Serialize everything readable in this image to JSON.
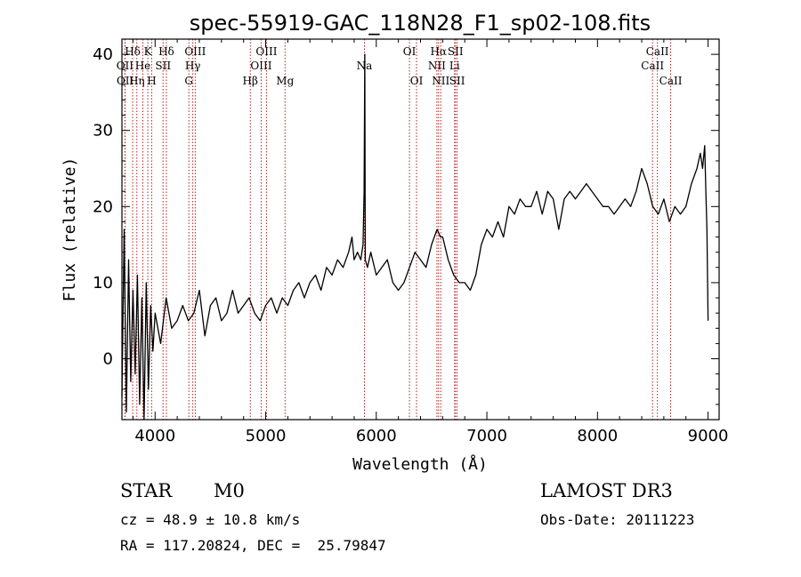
{
  "chart_data": {
    "type": "line",
    "title": "spec-55919-GAC_118N28_F1_sp02-108.fits",
    "xlabel": "Wavelength (Å)",
    "ylabel": "Flux (relative)",
    "xlim": [
      3700,
      9100
    ],
    "ylim": [
      -8,
      42
    ],
    "xticks": [
      4000,
      5000,
      6000,
      7000,
      8000,
      9000
    ],
    "yticks": [
      0,
      10,
      20,
      30,
      40
    ],
    "line_color": "#000000",
    "marker_color": "#b22222",
    "spectrum": {
      "x": [
        3700,
        3720,
        3740,
        3760,
        3780,
        3800,
        3820,
        3840,
        3860,
        3880,
        3900,
        3920,
        3940,
        3960,
        3980,
        4000,
        4050,
        4100,
        4150,
        4200,
        4250,
        4300,
        4350,
        4400,
        4450,
        4500,
        4550,
        4600,
        4650,
        4700,
        4750,
        4800,
        4850,
        4900,
        4950,
        5000,
        5050,
        5100,
        5150,
        5200,
        5250,
        5300,
        5350,
        5400,
        5450,
        5500,
        5550,
        5600,
        5650,
        5700,
        5750,
        5780,
        5800,
        5830,
        5860,
        5880,
        5890,
        5896,
        5900,
        5920,
        5950,
        6000,
        6050,
        6100,
        6150,
        6200,
        6250,
        6300,
        6350,
        6400,
        6450,
        6500,
        6550,
        6580,
        6600,
        6650,
        6700,
        6750,
        6800,
        6850,
        6900,
        6950,
        7000,
        7050,
        7100,
        7150,
        7200,
        7250,
        7300,
        7350,
        7400,
        7450,
        7500,
        7550,
        7600,
        7650,
        7700,
        7750,
        7800,
        7850,
        7900,
        7950,
        8000,
        8050,
        8100,
        8150,
        8200,
        8250,
        8300,
        8350,
        8400,
        8450,
        8500,
        8550,
        8600,
        8650,
        8700,
        8750,
        8800,
        8850,
        8900,
        8930,
        8950,
        8970,
        8980,
        8990,
        9000
      ],
      "y": [
        -5,
        17,
        -7,
        13,
        -3,
        9,
        -2,
        11,
        -6,
        8,
        -8,
        10,
        -4,
        7,
        1,
        6,
        2,
        8,
        4,
        5,
        7,
        5,
        6,
        9,
        3,
        7,
        8,
        5,
        6,
        9,
        6,
        7,
        8,
        6,
        5,
        7,
        8,
        6,
        8,
        7,
        9,
        10,
        8,
        10,
        11,
        9,
        12,
        11,
        13,
        12,
        14,
        16,
        13,
        14,
        13,
        15,
        22,
        40,
        13,
        12,
        14,
        11,
        12,
        13,
        10,
        9,
        10,
        12,
        14,
        13,
        12,
        15,
        17,
        16,
        16,
        13,
        11,
        10,
        10,
        9,
        11,
        15,
        17,
        16,
        18,
        16,
        20,
        19,
        21,
        20,
        20,
        22,
        19,
        22,
        21,
        17,
        21,
        22,
        21,
        22,
        23,
        22,
        21,
        20,
        20,
        19,
        20,
        21,
        20,
        22,
        25,
        23,
        20,
        19,
        21,
        18,
        20,
        19,
        20,
        23,
        25,
        27,
        25,
        28,
        22,
        17,
        5
      ]
    },
    "line_markers": [
      {
        "label": "Hδ",
        "wavelength": 3797,
        "row": 1
      },
      {
        "label": "OII",
        "wavelength": 3727,
        "row": 2
      },
      {
        "label": "OII",
        "wavelength": 3729,
        "row": 3
      },
      {
        "label": "K",
        "wavelength": 3934,
        "row": 1
      },
      {
        "label": "He",
        "wavelength": 3889,
        "row": 2
      },
      {
        "label": "Hη",
        "wavelength": 3835,
        "row": 3
      },
      {
        "label": "SII",
        "wavelength": 4072,
        "row": 2
      },
      {
        "label": "H",
        "wavelength": 3969,
        "row": 3
      },
      {
        "label": "Hδ",
        "wavelength": 4102,
        "row": 1
      },
      {
        "label": "OIII",
        "wavelength": 4363,
        "row": 1
      },
      {
        "label": "Hγ",
        "wavelength": 4341,
        "row": 2
      },
      {
        "label": "G",
        "wavelength": 4305,
        "row": 3
      },
      {
        "label": "OIII",
        "wavelength": 5007,
        "row": 1
      },
      {
        "label": "OIII",
        "wavelength": 4959,
        "row": 2
      },
      {
        "label": "Hβ",
        "wavelength": 4861,
        "row": 3
      },
      {
        "label": "Mg",
        "wavelength": 5175,
        "row": 3
      },
      {
        "label": "Na",
        "wavelength": 5893,
        "row": 2
      },
      {
        "label": "OI",
        "wavelength": 6300,
        "row": 1
      },
      {
        "label": "OI",
        "wavelength": 6364,
        "row": 3
      },
      {
        "label": "Hα",
        "wavelength": 6563,
        "row": 1
      },
      {
        "label": "NII",
        "wavelength": 6548,
        "row": 2
      },
      {
        "label": "NII",
        "wavelength": 6583,
        "row": 3
      },
      {
        "label": "SII",
        "wavelength": 6716,
        "row": 1
      },
      {
        "label": "Li",
        "wavelength": 6708,
        "row": 2
      },
      {
        "label": "SII",
        "wavelength": 6731,
        "row": 3
      },
      {
        "label": "CaII",
        "wavelength": 8542,
        "row": 1
      },
      {
        "label": "CaII",
        "wavelength": 8498,
        "row": 2
      },
      {
        "label": "CaII",
        "wavelength": 8662,
        "row": 3
      }
    ]
  },
  "info": {
    "object_class": "STAR",
    "subclass": "M0",
    "survey": "LAMOST DR3",
    "cz": "cz = 48.9 ± 10.8 km/s",
    "obs_date": "Obs-Date: 20111223",
    "coords": "RA = 117.20824, DEC =  25.79847"
  }
}
